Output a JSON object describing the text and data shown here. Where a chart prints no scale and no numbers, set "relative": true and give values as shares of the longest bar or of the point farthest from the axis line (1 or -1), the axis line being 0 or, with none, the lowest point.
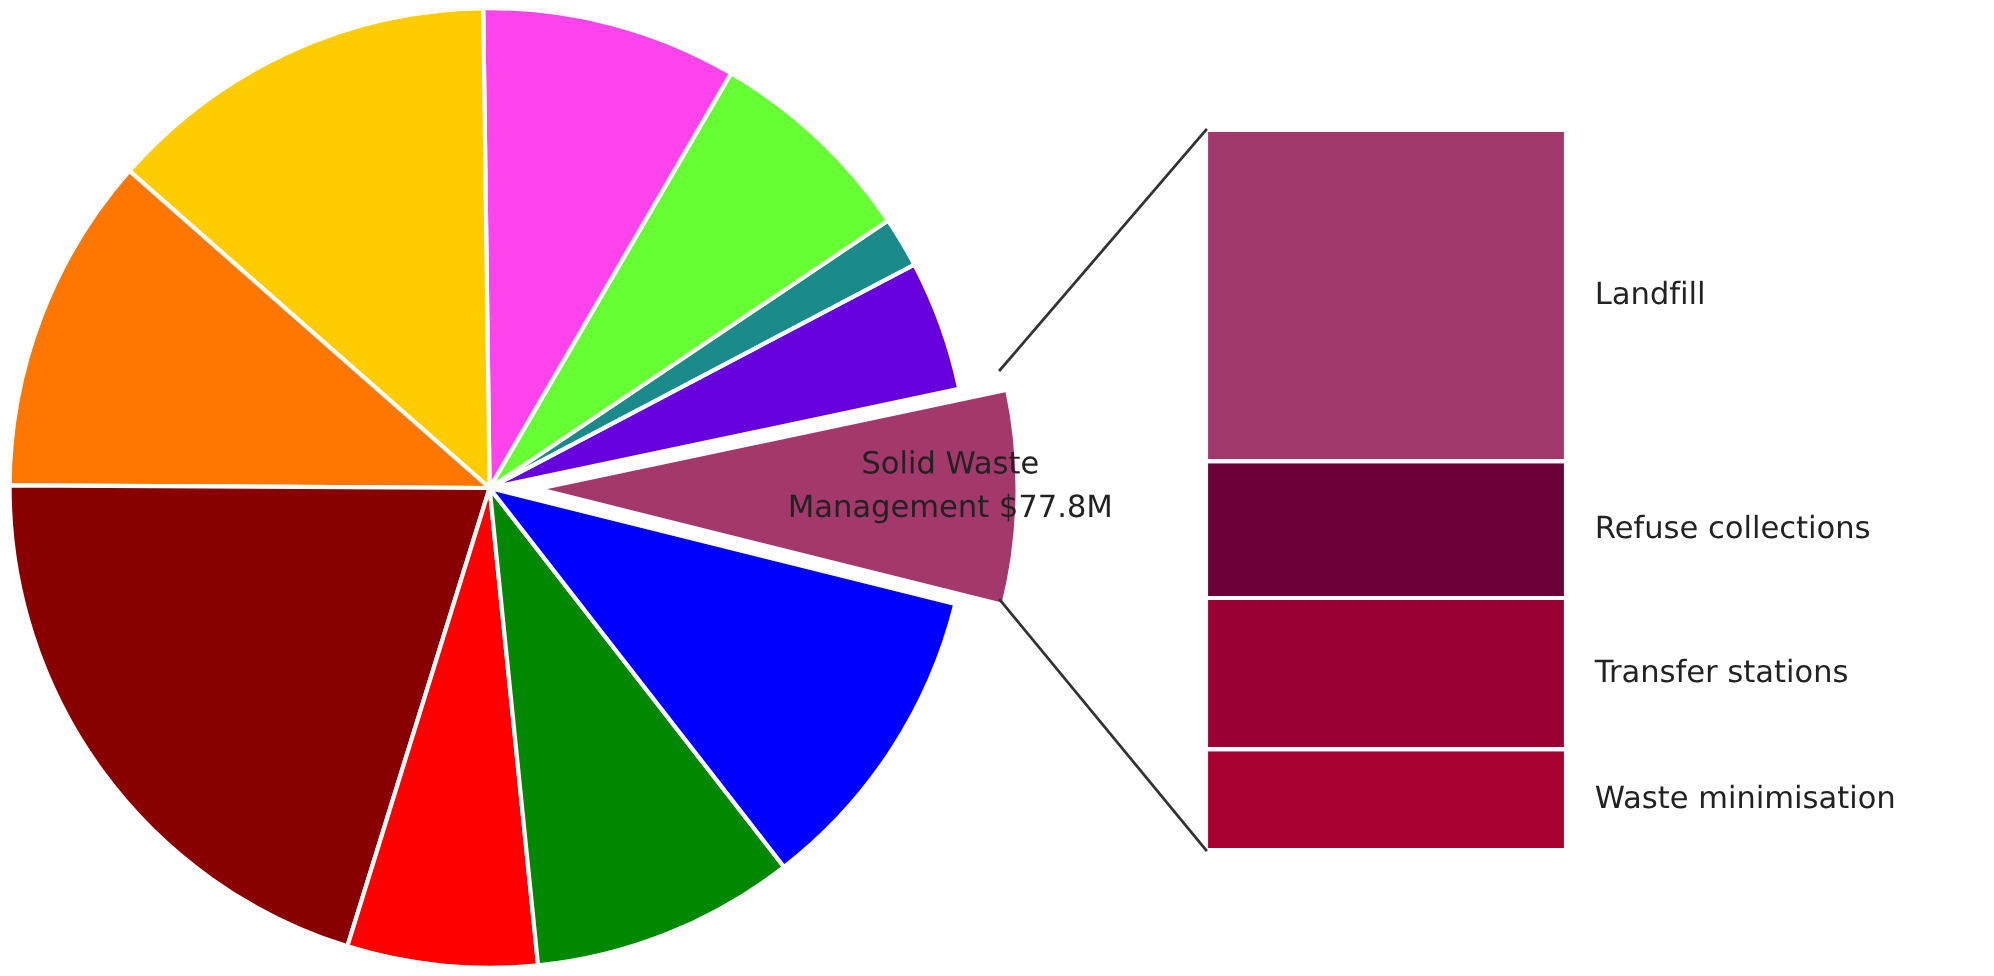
{
  "chart_data": [
    {
      "type": "pie",
      "categories": [
        "Solid Waste\nManagement $77.8M",
        null,
        null,
        null,
        null,
        null,
        null,
        null,
        null,
        null,
        null
      ],
      "values": [
        7.2,
        4.4,
        1.7,
        7.2,
        8.6,
        13.3,
        11.4,
        20.3,
        6.4,
        8.9,
        10.6
      ],
      "colors": [
        "#a3386b",
        "#6600dd",
        "#1a8a8a",
        "#66ff33",
        "#ff44ee",
        "#ffcc00",
        "#ff7700",
        "#880000",
        "#ff0000",
        "#008800",
        "#0000ff"
      ]
    },
    {
      "type": "bar",
      "stacked": true,
      "relative": true,
      "categories": [
        null
      ],
      "series": [
        {
          "name": "Waste minimisation",
          "color": "#a80030",
          "values": [
            0.14
          ]
        },
        {
          "name": "Transfer stations",
          "color": "#9b0035",
          "values": [
            0.21
          ]
        },
        {
          "name": "Refuse collections",
          "color": "#6b0036",
          "values": [
            0.19
          ]
        },
        {
          "name": "Landfill",
          "color": "#a0386b",
          "values": [
            0.46
          ]
        }
      ]
    }
  ]
}
